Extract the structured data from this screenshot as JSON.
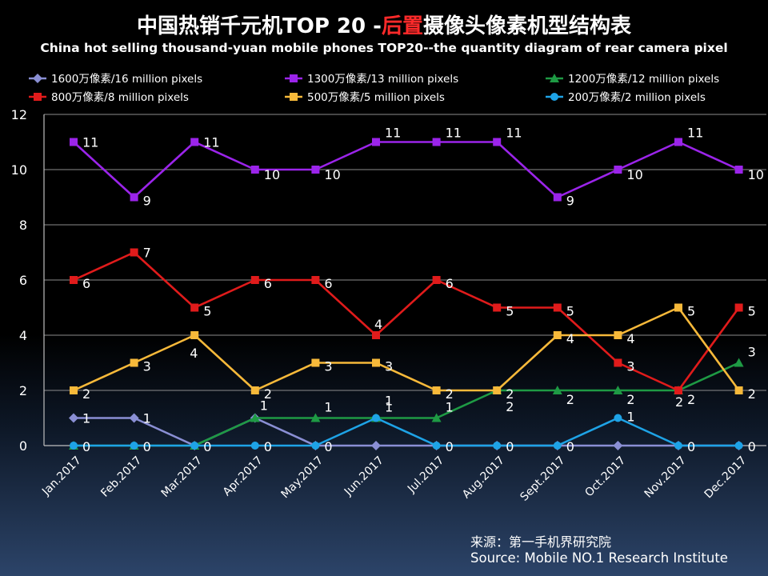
{
  "title": {
    "zh_prefix": "中国热销千元机TOP 20 -",
    "zh_accent": "后置",
    "zh_suffix": "摄像头像素机型结构表",
    "en": "China hot selling thousand-yuan mobile phones TOP20--the quantity diagram of rear camera pixel"
  },
  "source": {
    "zh": "来源：第一手机界研究院",
    "en": "Source: Mobile NO.1 Research Institute"
  },
  "chart_data": {
    "type": "line",
    "title": "中国热销千元机TOP 20 -后置摄像头像素机型结构表",
    "xlabel": "",
    "ylabel": "",
    "ylim": [
      0,
      12
    ],
    "yticks": [
      0,
      2,
      4,
      6,
      8,
      10,
      12
    ],
    "grid": true,
    "legend_position": "top",
    "categories": [
      "Jan.2017",
      "Feb.2017",
      "Mar.2017",
      "Apr.2017",
      "May.2017",
      "Jun.2017",
      "Jul.2017",
      "Aug.2017",
      "Sept.2017",
      "Oct.2017",
      "Nov.2017",
      "Dec.2017"
    ],
    "series": [
      {
        "name": "1600万像素/16 million pixels",
        "color": "#8a8fd4",
        "marker": "diamond",
        "values": [
          1,
          1,
          0,
          1,
          0,
          0,
          0,
          0,
          0,
          0,
          0,
          0
        ]
      },
      {
        "name": "1300万像素/13 million pixels",
        "color": "#9b24ea",
        "marker": "square",
        "values": [
          11,
          9,
          11,
          10,
          10,
          11,
          11,
          11,
          9,
          10,
          11,
          10
        ]
      },
      {
        "name": "1200万像素/12 million pixels",
        "color": "#1e9a44",
        "marker": "triangle",
        "values": [
          0,
          0,
          0,
          1,
          1,
          1,
          1,
          2,
          2,
          2,
          2,
          3
        ]
      },
      {
        "name": "800万像素/8 million pixels",
        "color": "#e01b1b",
        "marker": "square",
        "values": [
          6,
          7,
          5,
          6,
          6,
          4,
          6,
          5,
          5,
          3,
          2,
          5
        ]
      },
      {
        "name": "500万像素/5 million pixels",
        "color": "#f7b93a",
        "marker": "square",
        "values": [
          2,
          3,
          4,
          2,
          3,
          3,
          2,
          2,
          4,
          4,
          5,
          2
        ]
      },
      {
        "name": "200万像素/2 million pixels",
        "color": "#1ea3e6",
        "marker": "circle",
        "values": [
          0,
          0,
          0,
          0,
          0,
          1,
          0,
          0,
          0,
          1,
          0,
          0
        ]
      }
    ],
    "data_labels": [
      {
        "series": 1,
        "labels": [
          "11",
          "9",
          "11",
          "10",
          "10",
          "11",
          "11",
          "11",
          "9",
          "10",
          "11",
          "10"
        ]
      },
      {
        "series": 3,
        "labels": [
          "6",
          "7",
          "5",
          "6",
          "6",
          "4",
          "6",
          "5",
          "5",
          "3",
          "2",
          "5"
        ]
      },
      {
        "series": 4,
        "labels": [
          "2",
          "3",
          "4",
          "2",
          "3",
          "3",
          "2",
          "2",
          "4",
          "4",
          "5",
          "2"
        ]
      },
      {
        "series": 2,
        "labels": [
          "",
          "",
          "",
          "1",
          "1",
          "1",
          "1",
          "2",
          "2",
          "2",
          "2",
          "3"
        ]
      },
      {
        "series": 0,
        "labels": [
          "1",
          "1",
          "",
          "",
          "",
          "",
          "",
          "",
          "",
          "",
          "",
          ""
        ]
      },
      {
        "series": 5,
        "labels": [
          "0",
          "0",
          "0",
          "0",
          "0",
          "1",
          "0",
          "0",
          "0",
          "1",
          "0",
          "0"
        ]
      }
    ]
  }
}
